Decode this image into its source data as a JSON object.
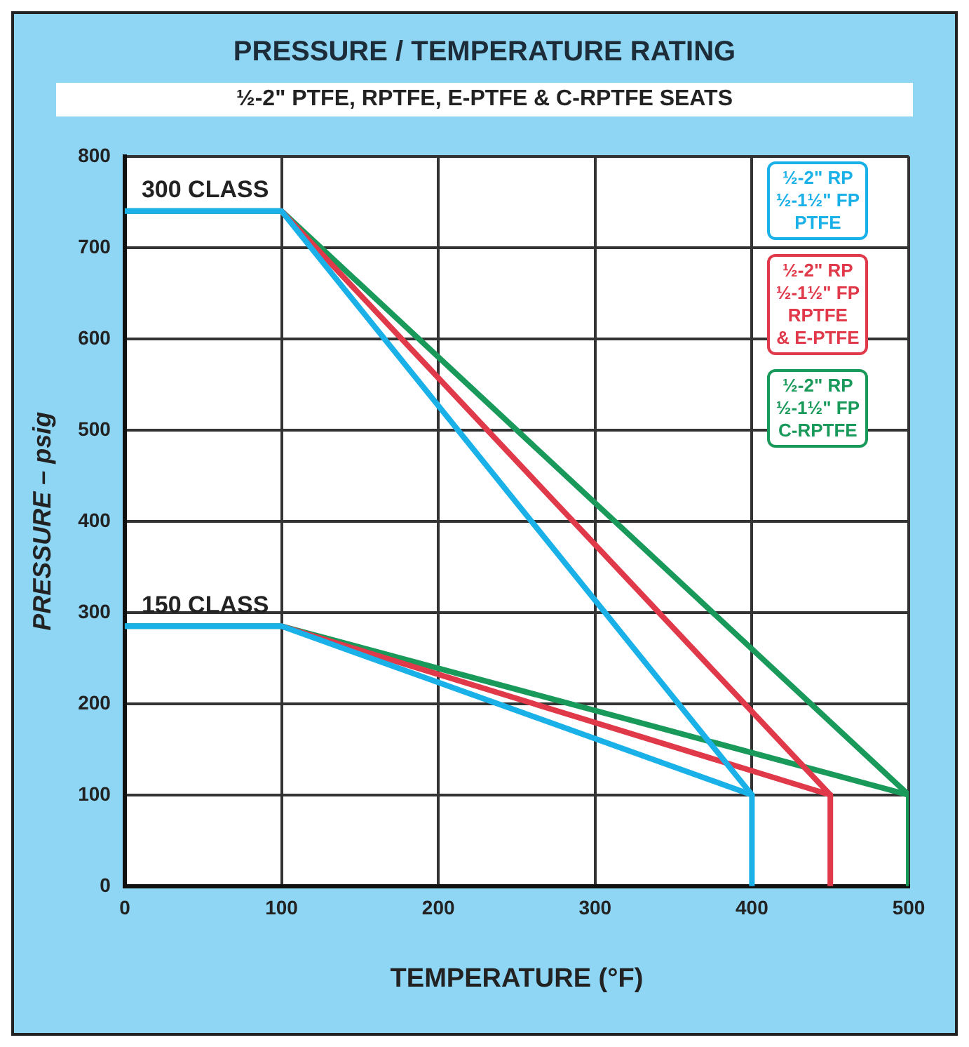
{
  "chart_data": {
    "type": "line",
    "title": "PRESSURE / TEMPERATURE RATING",
    "subtitle": "½-2\" PTFE, RPTFE, E-PTFE & C-RPTFE SEATS",
    "xlabel": "TEMPERATURE (°F)",
    "ylabel": "PRESSURE – psig",
    "xlim": [
      0,
      500
    ],
    "xticks": [
      0,
      100,
      200,
      300,
      400,
      500
    ],
    "ylim": [
      0,
      800
    ],
    "yticks": [
      0,
      100,
      200,
      300,
      400,
      500,
      600,
      700,
      800
    ],
    "grid": true,
    "legend": "top right",
    "marker": "none",
    "line_style": "solid",
    "annotations": [
      {
        "text": "300 CLASS",
        "x": 0,
        "y": 740
      },
      {
        "text": "150 CLASS",
        "x": 0,
        "y": 285
      }
    ],
    "series": [
      {
        "name": "½-2\" RP\n½-1½\" FP\nPTFE",
        "color": "#1ab0e8",
        "x": [
          0,
          100,
          400,
          400
        ],
        "values": [
          740,
          740,
          100,
          0
        ]
      },
      {
        "name": "½-2\" RP\n½-1½\" FP\nRPTFE\n& E-PTFE",
        "color": "#e0394a",
        "x": [
          100,
          450,
          450
        ],
        "values": [
          740,
          100,
          0
        ]
      },
      {
        "name": "½-2\" RP\n½-1½\" FP\nC-RPTFE",
        "color": "#1a9a5a",
        "x": [
          0,
          100,
          500,
          500
        ],
        "values": [
          740,
          740,
          100,
          0
        ]
      },
      {
        "color": "#1ab0e8",
        "x": [
          0,
          100,
          400
        ],
        "values": [
          285,
          285,
          100
        ]
      },
      {
        "color": "#e0394a",
        "x": [
          100,
          450
        ],
        "values": [
          285,
          100
        ]
      },
      {
        "color": "#1a9a5a",
        "x": [
          0,
          100,
          500
        ],
        "values": [
          285,
          285,
          100
        ]
      }
    ]
  }
}
